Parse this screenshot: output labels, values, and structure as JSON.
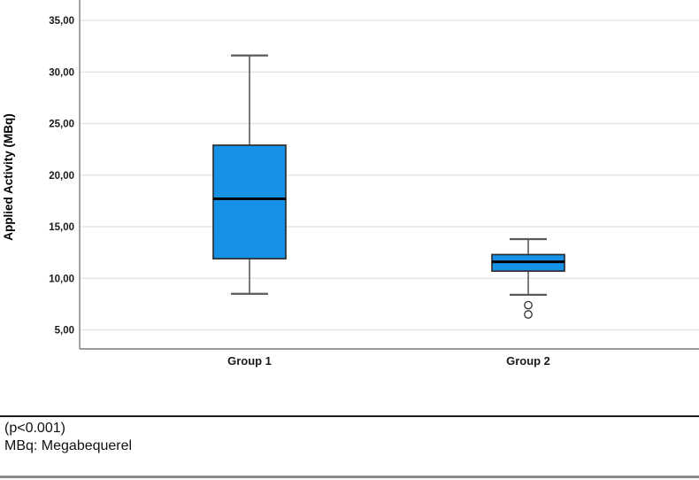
{
  "figure": {
    "caption": {
      "line1": "(p<0.001)",
      "line2": "MBq: Megabequerel"
    }
  },
  "chart_data": {
    "type": "boxplot",
    "title": "",
    "ylabel": "Applied Activity (MBq)",
    "xlabel": "",
    "categories": [
      "Group 1",
      "Group 2"
    ],
    "y_ticks": [
      {
        "value": 5,
        "label": "5,00"
      },
      {
        "value": 10,
        "label": "10,00"
      },
      {
        "value": 15,
        "label": "15,00"
      },
      {
        "value": 20,
        "label": "20,00"
      },
      {
        "value": 25,
        "label": "25,00"
      },
      {
        "value": 30,
        "label": "30,00"
      },
      {
        "value": 35,
        "label": "35,00"
      }
    ],
    "ylim": [
      3.2,
      37.0
    ],
    "grid": "horizontal",
    "legend": "none",
    "series": [
      {
        "name": "Group 1",
        "whisker_low": 8.5,
        "q1": 11.9,
        "median": 17.7,
        "q3": 22.9,
        "whisker_high": 31.6,
        "outliers": []
      },
      {
        "name": "Group 2",
        "whisker_low": 8.4,
        "q1": 10.7,
        "median": 11.6,
        "q3": 12.3,
        "whisker_high": 13.8,
        "outliers": [
          7.4,
          6.5
        ]
      }
    ],
    "colors": {
      "box_fill": "#1591E8",
      "box_stroke": "#303030",
      "median_line": "#000000",
      "whisker": "#5a5a5a",
      "gridline": "#e2e2e2",
      "axis_line": "#8c8c8c",
      "text": "#1a1a1a"
    }
  }
}
